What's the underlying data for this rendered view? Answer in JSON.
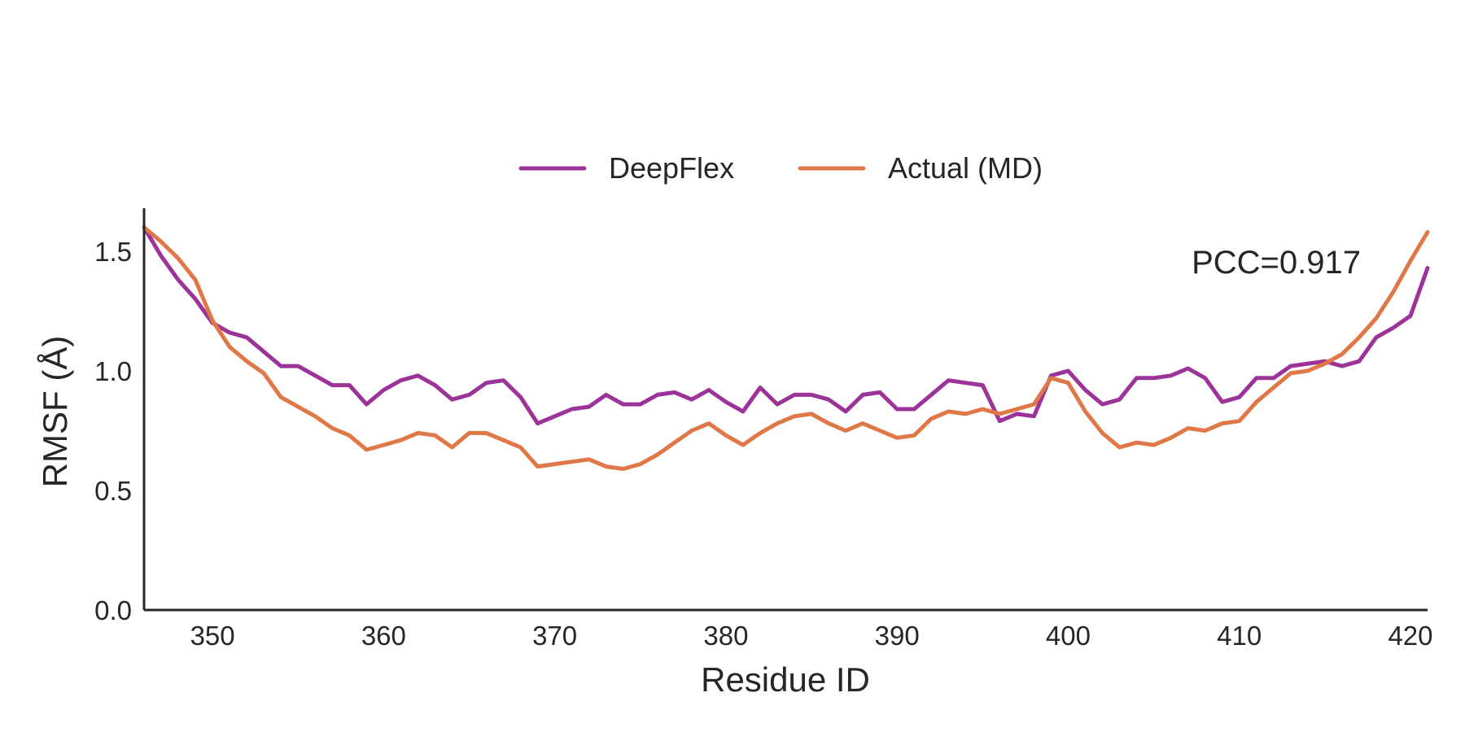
{
  "chart_data": {
    "type": "line",
    "xlabel": "Residue ID",
    "ylabel": "RMSF (Å)",
    "xlim": [
      346,
      421
    ],
    "ylim": [
      0,
      1.68
    ],
    "x_ticks": [
      350,
      360,
      370,
      380,
      390,
      400,
      410,
      420
    ],
    "y_ticks": [
      0.0,
      0.5,
      1.0,
      1.5
    ],
    "x_tick_labels": [
      "350",
      "360",
      "370",
      "380",
      "390",
      "400",
      "410",
      "420"
    ],
    "y_tick_labels": [
      "0.0",
      "0.5",
      "1.0",
      "1.5"
    ],
    "grid": false,
    "legend_position": "top-center",
    "annotation": "PCC=0.917",
    "x": [
      346,
      347,
      348,
      349,
      350,
      351,
      352,
      353,
      354,
      355,
      356,
      357,
      358,
      359,
      360,
      361,
      362,
      363,
      364,
      365,
      366,
      367,
      368,
      369,
      370,
      371,
      372,
      373,
      374,
      375,
      376,
      377,
      378,
      379,
      380,
      381,
      382,
      383,
      384,
      385,
      386,
      387,
      388,
      389,
      390,
      391,
      392,
      393,
      394,
      395,
      396,
      397,
      398,
      399,
      400,
      401,
      402,
      403,
      404,
      405,
      406,
      407,
      408,
      409,
      410,
      411,
      412,
      413,
      414,
      415,
      416,
      417,
      418,
      419,
      420,
      421
    ],
    "series": [
      {
        "name": "DeepFlex",
        "color": "#9b3399",
        "values": [
          1.6,
          1.48,
          1.38,
          1.3,
          1.2,
          1.16,
          1.14,
          1.08,
          1.02,
          1.02,
          0.98,
          0.94,
          0.94,
          0.86,
          0.92,
          0.96,
          0.98,
          0.94,
          0.88,
          0.9,
          0.95,
          0.96,
          0.89,
          0.78,
          0.81,
          0.84,
          0.85,
          0.9,
          0.86,
          0.86,
          0.9,
          0.91,
          0.88,
          0.92,
          0.87,
          0.83,
          0.93,
          0.86,
          0.9,
          0.9,
          0.88,
          0.83,
          0.9,
          0.91,
          0.84,
          0.84,
          0.9,
          0.96,
          0.95,
          0.94,
          0.79,
          0.82,
          0.81,
          0.98,
          1.0,
          0.92,
          0.86,
          0.88,
          0.97,
          0.97,
          0.98,
          1.01,
          0.97,
          0.87,
          0.89,
          0.97,
          0.97,
          1.02,
          1.03,
          1.04,
          1.02,
          1.04,
          1.14,
          1.18,
          1.23,
          1.43
        ]
      },
      {
        "name": "Actual (MD)",
        "color": "#e07747",
        "values": [
          1.6,
          1.54,
          1.47,
          1.38,
          1.21,
          1.1,
          1.04,
          0.99,
          0.89,
          0.85,
          0.81,
          0.76,
          0.73,
          0.67,
          0.69,
          0.71,
          0.74,
          0.73,
          0.68,
          0.74,
          0.74,
          0.71,
          0.68,
          0.6,
          0.61,
          0.62,
          0.63,
          0.6,
          0.59,
          0.61,
          0.65,
          0.7,
          0.75,
          0.78,
          0.73,
          0.69,
          0.74,
          0.78,
          0.81,
          0.82,
          0.78,
          0.75,
          0.78,
          0.75,
          0.72,
          0.73,
          0.8,
          0.83,
          0.82,
          0.84,
          0.82,
          0.84,
          0.86,
          0.97,
          0.95,
          0.83,
          0.74,
          0.68,
          0.7,
          0.69,
          0.72,
          0.76,
          0.75,
          0.78,
          0.79,
          0.87,
          0.93,
          0.99,
          1.0,
          1.03,
          1.07,
          1.14,
          1.22,
          1.33,
          1.46,
          1.58
        ]
      }
    ]
  }
}
